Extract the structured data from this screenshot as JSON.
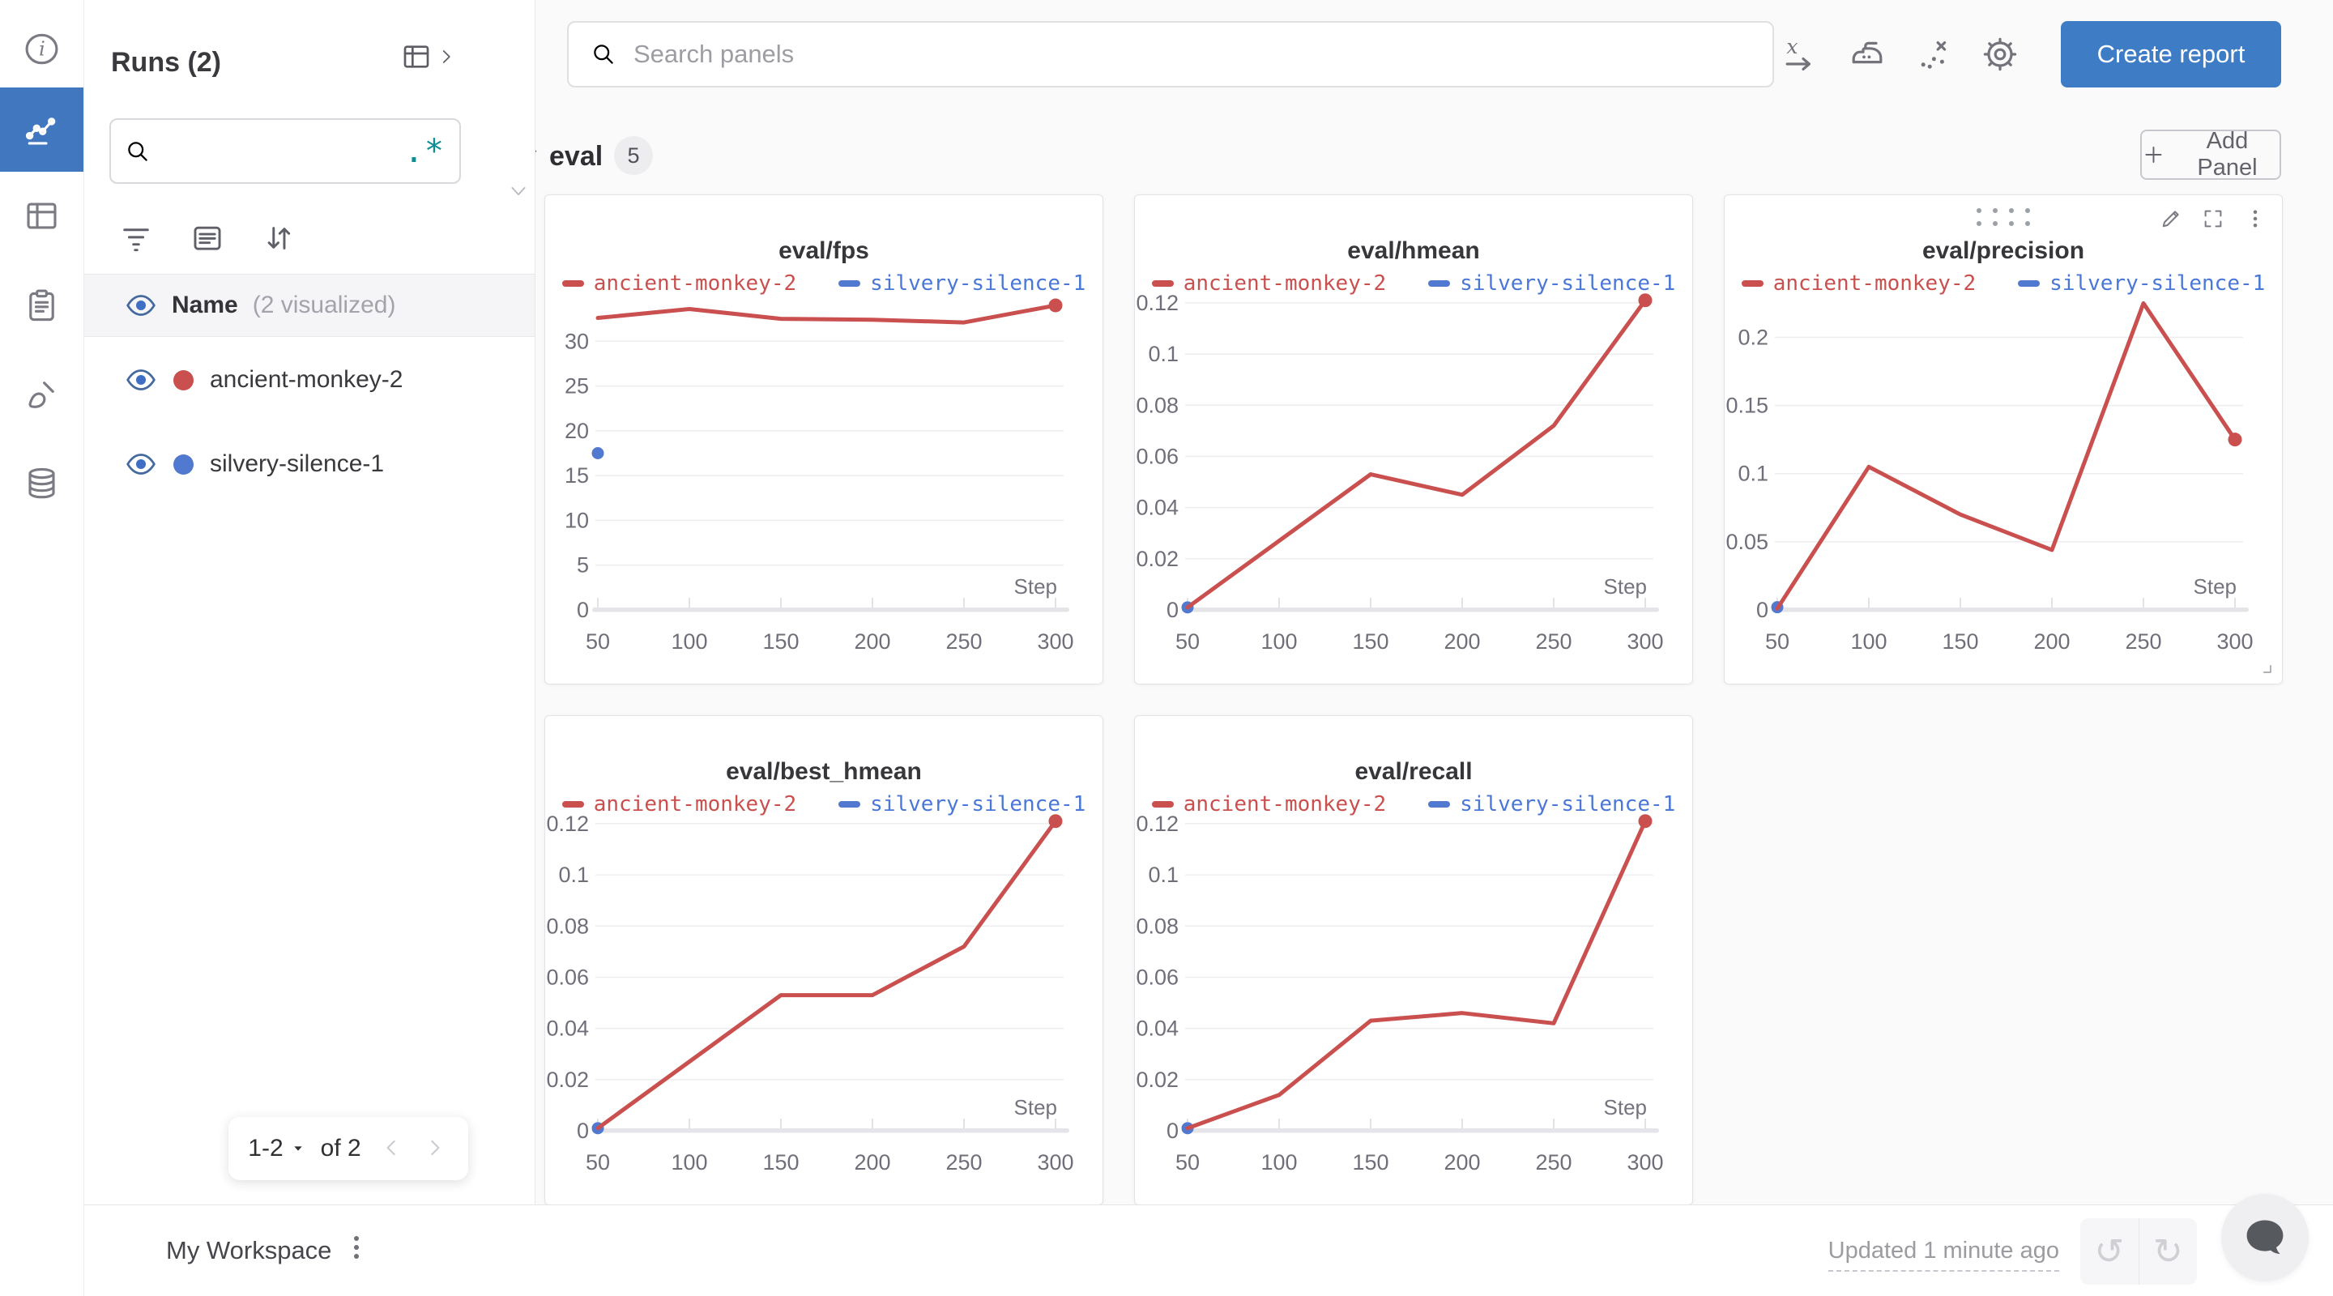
{
  "colors": {
    "accent_blue": "#3e7dc6",
    "rail_selected_blue": "#4077be",
    "run_red": "#c9504e",
    "run_blue": "#5179d0",
    "legend_red_text": "#c9504e",
    "legend_blue_text": "#4a77d8",
    "regex_teal": "#0e8e92"
  },
  "rail": {
    "items": [
      {
        "icon": "info-icon",
        "selected": false
      },
      {
        "icon": "line-chart-icon",
        "selected": true
      },
      {
        "icon": "table-icon",
        "selected": false
      },
      {
        "icon": "clipboard-icon",
        "selected": false
      },
      {
        "icon": "brush-icon",
        "selected": false
      },
      {
        "icon": "database-icon",
        "selected": false
      }
    ]
  },
  "runs_panel": {
    "title": "Runs (2)",
    "search": {
      "placeholder": "",
      "regex_label": ".*"
    },
    "toolbar": [
      {
        "icon": "filter-funnel-icon"
      },
      {
        "icon": "list-icon"
      },
      {
        "icon": "sort-icon"
      }
    ],
    "header_row": {
      "label": "Name",
      "sublabel": "(2 visualized)"
    },
    "runs": [
      {
        "name": "ancient-monkey-2",
        "color": "#c9504e"
      },
      {
        "name": "silvery-silence-1",
        "color": "#5179d0"
      }
    ],
    "pagination": {
      "range": "1-2",
      "of_label": "of 2"
    }
  },
  "topbar": {
    "search_placeholder": "Search panels",
    "icons": [
      {
        "icon": "x-axis-icon"
      },
      {
        "icon": "smoothing-iron-icon"
      },
      {
        "icon": "outliers-icon"
      },
      {
        "icon": "settings-gear-icon"
      }
    ],
    "create_report_label": "Create report"
  },
  "section": {
    "title": "eval",
    "count": "5",
    "add_panel_label": "Add Panel"
  },
  "footer": {
    "workspace_label": "My Workspace",
    "updated_label": "Updated 1 minute ago"
  },
  "chart_data": [
    {
      "type": "line",
      "title": "eval/fps",
      "xlabel": "Step",
      "grid": true,
      "legend_position": "top",
      "x": [
        50,
        100,
        150,
        200,
        250,
        300
      ],
      "ylim": [
        0,
        35
      ],
      "yticks": [
        0,
        5,
        10,
        15,
        20,
        25,
        30
      ],
      "series": [
        {
          "name": "ancient-monkey-2",
          "color": "#c9504e",
          "text_color": "#c9504e",
          "values": [
            32.6,
            33.6,
            32.5,
            32.4,
            32.1,
            34.0
          ],
          "end_dot": true
        },
        {
          "name": "silvery-silence-1",
          "color": "#5179d0",
          "text_color": "#4a77d8",
          "values": [
            17.5
          ],
          "single_point": true
        }
      ],
      "hovered": false
    },
    {
      "type": "line",
      "title": "eval/hmean",
      "xlabel": "Step",
      "grid": true,
      "legend_position": "top",
      "x": [
        50,
        100,
        150,
        200,
        250,
        300
      ],
      "ylim": [
        0,
        0.1225
      ],
      "yticks": [
        0,
        0.02,
        0.04,
        0.06,
        0.08,
        0.1,
        0.12
      ],
      "series": [
        {
          "name": "ancient-monkey-2",
          "color": "#c9504e",
          "text_color": "#c9504e",
          "values": [
            0.001,
            0.027,
            0.053,
            0.045,
            0.072,
            0.121
          ],
          "end_dot": true
        },
        {
          "name": "silvery-silence-1",
          "color": "#5179d0",
          "text_color": "#4a77d8",
          "values": [
            0.001
          ],
          "single_point": true
        }
      ],
      "hovered": false
    },
    {
      "type": "line",
      "title": "eval/precision",
      "xlabel": "Step",
      "grid": true,
      "legend_position": "top",
      "x": [
        50,
        100,
        150,
        200,
        250,
        300
      ],
      "ylim": [
        0,
        0.23
      ],
      "yticks": [
        0,
        0.05,
        0.1,
        0.15,
        0.2
      ],
      "series": [
        {
          "name": "ancient-monkey-2",
          "color": "#c9504e",
          "text_color": "#c9504e",
          "values": [
            0.001,
            0.105,
            0.07,
            0.044,
            0.225,
            0.125
          ],
          "end_dot": true
        },
        {
          "name": "silvery-silence-1",
          "color": "#5179d0",
          "text_color": "#4a77d8",
          "values": [
            0.002
          ],
          "single_point": true
        }
      ],
      "hovered": true
    },
    {
      "type": "line",
      "title": "eval/best_hmean",
      "xlabel": "Step",
      "grid": true,
      "legend_position": "top",
      "x": [
        50,
        100,
        150,
        200,
        250,
        300
      ],
      "ylim": [
        0,
        0.1225
      ],
      "yticks": [
        0,
        0.02,
        0.04,
        0.06,
        0.08,
        0.1,
        0.12
      ],
      "series": [
        {
          "name": "ancient-monkey-2",
          "color": "#c9504e",
          "text_color": "#c9504e",
          "values": [
            0.001,
            0.027,
            0.053,
            0.053,
            0.072,
            0.121
          ],
          "end_dot": true
        },
        {
          "name": "silvery-silence-1",
          "color": "#5179d0",
          "text_color": "#4a77d8",
          "values": [
            0.001
          ],
          "single_point": true
        }
      ],
      "hovered": false
    },
    {
      "type": "line",
      "title": "eval/recall",
      "xlabel": "Step",
      "grid": true,
      "legend_position": "top",
      "x": [
        50,
        100,
        150,
        200,
        250,
        300
      ],
      "ylim": [
        0,
        0.1225
      ],
      "yticks": [
        0,
        0.02,
        0.04,
        0.06,
        0.08,
        0.1,
        0.12
      ],
      "series": [
        {
          "name": "ancient-monkey-2",
          "color": "#c9504e",
          "text_color": "#c9504e",
          "values": [
            0.001,
            0.014,
            0.043,
            0.046,
            0.042,
            0.121
          ],
          "end_dot": true
        },
        {
          "name": "silvery-silence-1",
          "color": "#5179d0",
          "text_color": "#4a77d8",
          "values": [
            0.001
          ],
          "single_point": true
        }
      ],
      "hovered": false
    }
  ]
}
